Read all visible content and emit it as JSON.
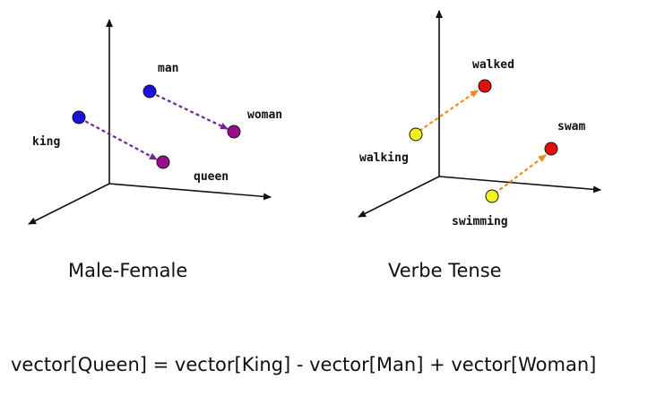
{
  "panels": [
    {
      "caption": "Male-Female",
      "points": [
        {
          "label": "man",
          "color": "#1a10e0"
        },
        {
          "label": "woman",
          "color": "#9a0e8e"
        },
        {
          "label": "king",
          "color": "#1a10e0"
        },
        {
          "label": "queen",
          "color": "#9a0e8e"
        }
      ],
      "arrow_color": "#6a2a9a"
    },
    {
      "caption": "Verbe Tense",
      "points": [
        {
          "label": "walked",
          "color": "#e01010"
        },
        {
          "label": "walking",
          "color": "#f2f21e"
        },
        {
          "label": "swam",
          "color": "#e01010"
        },
        {
          "label": "swimming",
          "color": "#f2f21e"
        }
      ],
      "arrow_color": "#f08a1e"
    }
  ],
  "equation": "vector[Queen] =  vector[King]  - vector[Man] + vector[Woman]"
}
